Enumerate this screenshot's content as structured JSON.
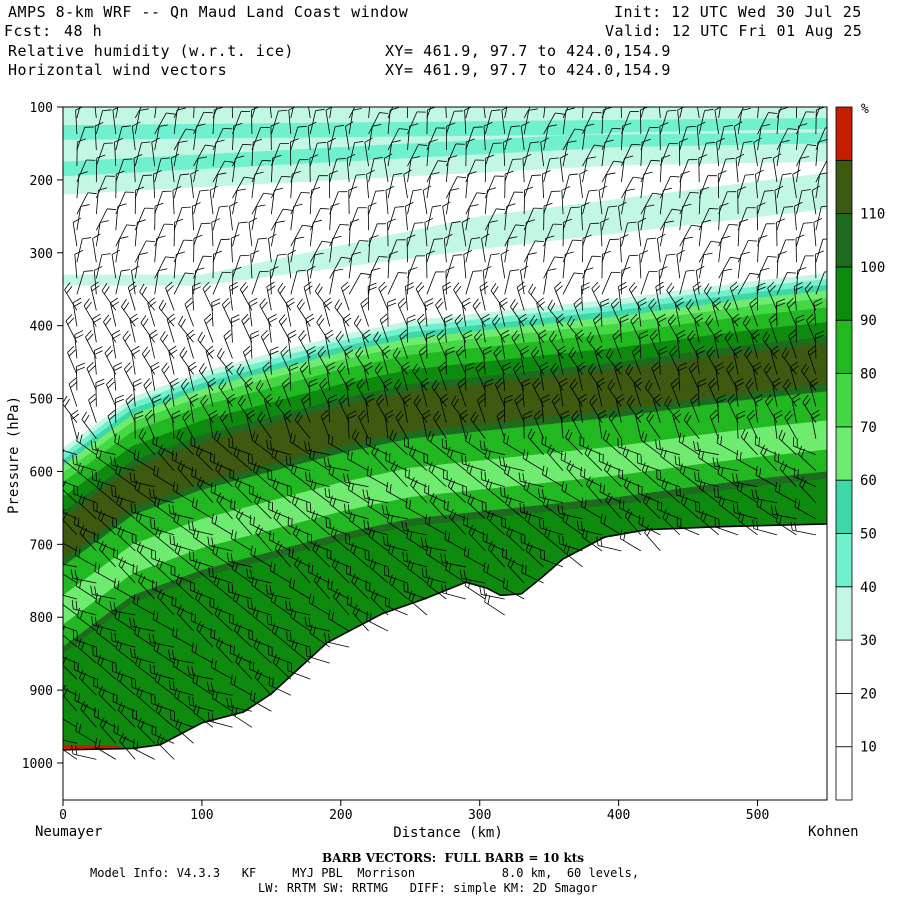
{
  "header": {
    "title": "AMPS 8-km WRF -- Qn Maud Land Coast window",
    "fcst_label": "Fcst:",
    "fcst_value": "48 h",
    "init": "Init: 12 UTC Wed 30 Jul 25",
    "valid": "Valid: 12 UTC Fri 01 Aug 25",
    "field1": "Relative humidity (w.r.t. ice)",
    "field2": "Horizontal wind vectors",
    "xy1": "XY= 461.9, 97.7 to 424.0,154.9",
    "xy2": "XY= 461.9, 97.7 to 424.0,154.9"
  },
  "endpoints": {
    "left": "Neumayer",
    "right": "Kohnen"
  },
  "footer": {
    "barb_note": "BARB VECTORS:  FULL BARB = 10 kts",
    "model_info_1": "Model Info: V4.3.3   KF     MYJ PBL  Morrison            8.0 km,  60 levels,",
    "model_info_2": "LW: RRTM SW: RRTMG   DIFF: simple KM: 2D Smagor"
  },
  "chart_data": {
    "type": "heatmap",
    "description_field": "Relative humidity (w.r.t. ice) cross-section",
    "xlabel": "Distance (km)",
    "ylabel": "Pressure (hPa)",
    "xlim": [
      0,
      550
    ],
    "ylim": [
      1050,
      100
    ],
    "x_ticks": [
      0,
      100,
      200,
      300,
      400,
      500
    ],
    "y_ticks": [
      100,
      200,
      300,
      400,
      500,
      600,
      700,
      800,
      900,
      1000
    ],
    "colorbar": {
      "unit": "%",
      "levels": [
        10,
        20,
        30,
        40,
        50,
        60,
        70,
        80,
        90,
        100,
        110
      ],
      "colors": [
        "#ffffff",
        "#ffffff",
        "#ffffff",
        "#c2f7e4",
        "#6ff0cf",
        "#3ed7a7",
        "#6feb6f",
        "#45d845",
        "#22b822",
        "#0e8a0e",
        "#1e6a1e",
        "#3d5a10",
        "#c81e00"
      ]
    },
    "terrain_surface": [
      {
        "x": 0,
        "p": 982
      },
      {
        "x": 50,
        "p": 980
      },
      {
        "x": 70,
        "p": 975
      },
      {
        "x": 100,
        "p": 945
      },
      {
        "x": 130,
        "p": 930
      },
      {
        "x": 150,
        "p": 905
      },
      {
        "x": 170,
        "p": 870
      },
      {
        "x": 190,
        "p": 835
      },
      {
        "x": 210,
        "p": 815
      },
      {
        "x": 230,
        "p": 795
      },
      {
        "x": 260,
        "p": 775
      },
      {
        "x": 290,
        "p": 752
      },
      {
        "x": 305,
        "p": 760
      },
      {
        "x": 315,
        "p": 770
      },
      {
        "x": 330,
        "p": 768
      },
      {
        "x": 345,
        "p": 745
      },
      {
        "x": 360,
        "p": 720
      },
      {
        "x": 390,
        "p": 690
      },
      {
        "x": 420,
        "p": 680
      },
      {
        "x": 470,
        "p": 676
      },
      {
        "x": 550,
        "p": 672
      }
    ],
    "moist_layer_top": [
      {
        "x": 0,
        "p": 580
      },
      {
        "x": 50,
        "p": 510
      },
      {
        "x": 100,
        "p": 475
      },
      {
        "x": 150,
        "p": 450
      },
      {
        "x": 200,
        "p": 425
      },
      {
        "x": 250,
        "p": 405
      },
      {
        "x": 300,
        "p": 395
      },
      {
        "x": 350,
        "p": 385
      },
      {
        "x": 400,
        "p": 375
      },
      {
        "x": 450,
        "p": 362
      },
      {
        "x": 500,
        "p": 350
      },
      {
        "x": 550,
        "p": 340
      }
    ],
    "upper_moist_band_top": [
      {
        "x": 0,
        "p": 110
      },
      {
        "x": 550,
        "p": 100
      }
    ],
    "upper_moist_band_bottom": [
      {
        "x": 0,
        "p": 200
      },
      {
        "x": 200,
        "p": 180
      },
      {
        "x": 400,
        "p": 160
      },
      {
        "x": 550,
        "p": 155
      }
    ],
    "mid_moist_band_top": [
      {
        "x": 100,
        "p": 330
      },
      {
        "x": 300,
        "p": 250
      },
      {
        "x": 550,
        "p": 190
      }
    ],
    "mid_moist_band_bottom": [
      {
        "x": 100,
        "p": 345
      },
      {
        "x": 300,
        "p": 295
      },
      {
        "x": 550,
        "p": 240
      }
    ]
  }
}
